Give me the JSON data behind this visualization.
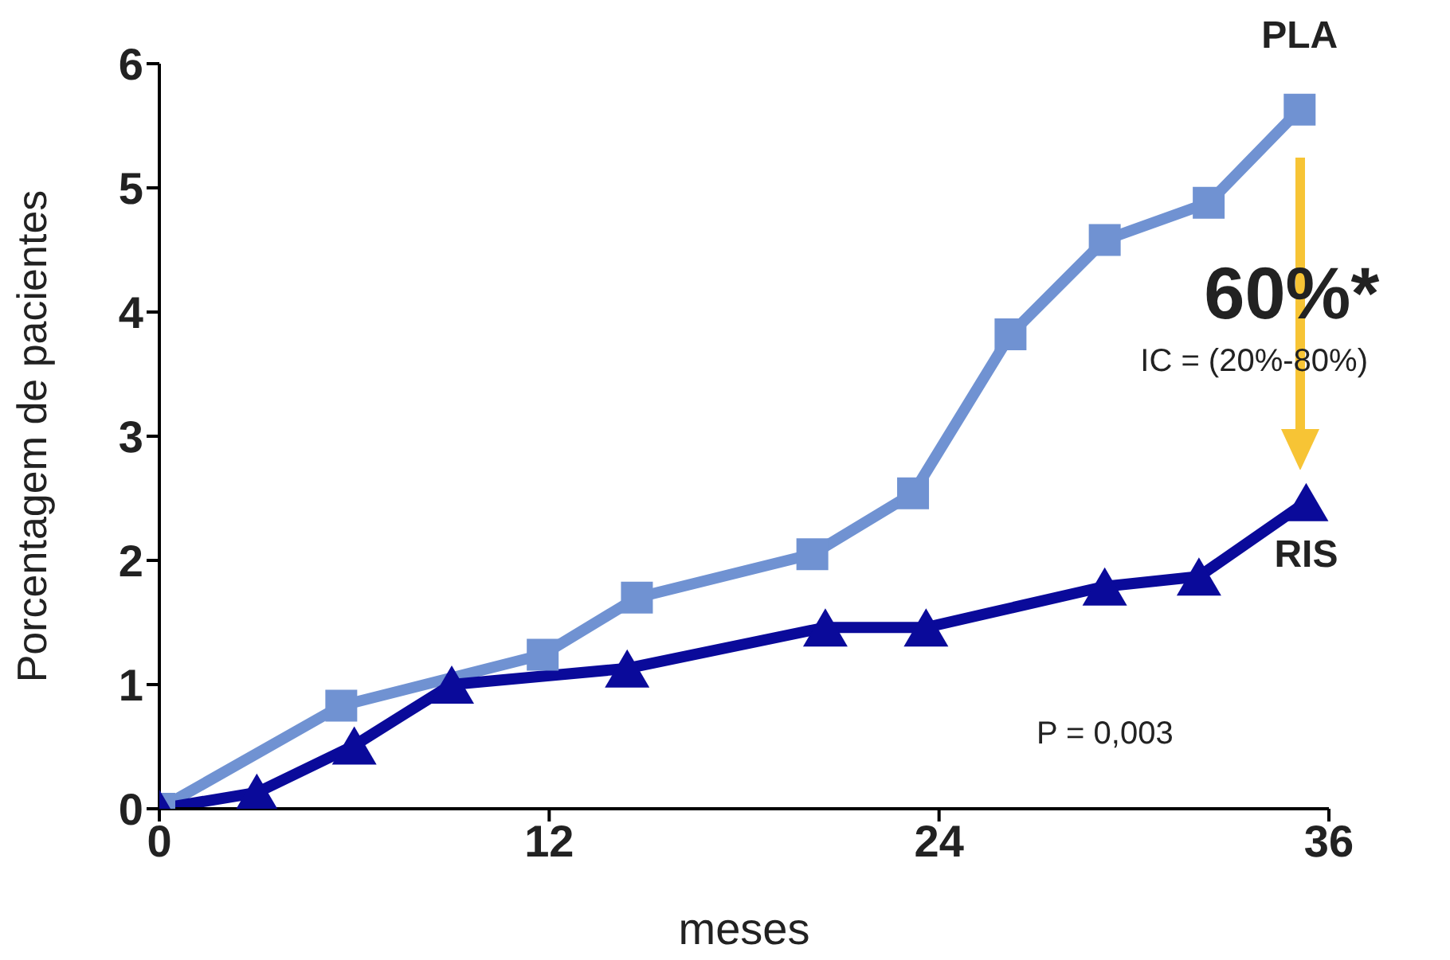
{
  "chart_data": {
    "type": "line",
    "xlabel": "meses",
    "ylabel": "Porcentagem de pacientes",
    "xlim": [
      0,
      36
    ],
    "xticks": [
      0,
      12,
      24,
      36
    ],
    "ylim": [
      0,
      6
    ],
    "yticks": [
      0,
      1,
      2,
      3,
      4,
      5,
      6
    ],
    "legend": "right",
    "series": [
      {
        "name": "PLA",
        "color": "#7092d2",
        "marker": "square",
        "x": [
          0,
          5.6,
          11.8,
          14.7,
          20.1,
          23.2,
          26.2,
          29.1,
          32.3,
          35.1
        ],
        "values": [
          0,
          0.83,
          1.24,
          1.7,
          2.05,
          2.54,
          3.82,
          4.58,
          4.88,
          5.63
        ]
      },
      {
        "name": "RIS",
        "color": "#0a0a9a",
        "marker": "triangle",
        "x": [
          0,
          3,
          6,
          9,
          14.4,
          20.5,
          23.6,
          29.1,
          32,
          35.3
        ],
        "values": [
          0,
          0.13,
          0.51,
          1.0,
          1.13,
          1.46,
          1.46,
          1.79,
          1.87,
          2.47
        ]
      }
    ],
    "annotations": [
      "60%*",
      "IC = (20%-80%)",
      "P = 0,003"
    ]
  }
}
